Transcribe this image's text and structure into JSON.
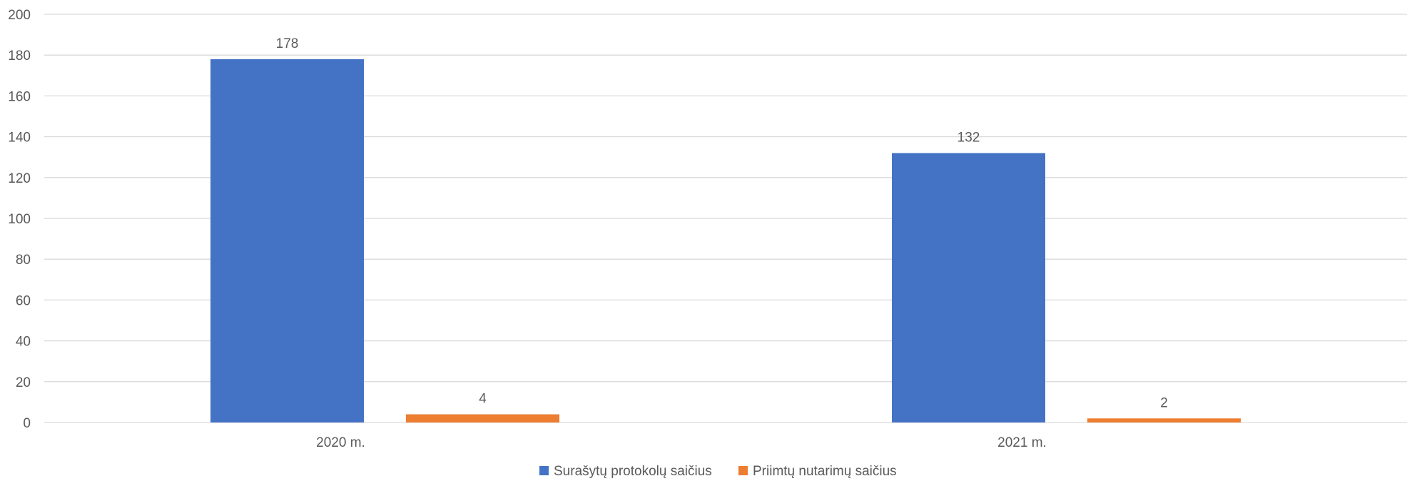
{
  "chart_data": {
    "type": "bar",
    "title": "",
    "xlabel": "",
    "ylabel": "",
    "categories": [
      "2020 m.",
      "2021 m."
    ],
    "series": [
      {
        "name": "Surašytų protokolų saičius",
        "color": "#4472C4",
        "values": [
          178,
          132
        ]
      },
      {
        "name": "Priimtų nutarimų saičius",
        "color": "#ED7D31",
        "values": [
          4,
          2
        ]
      }
    ],
    "ylim": [
      0,
      200
    ],
    "yticks": [
      0,
      20,
      40,
      60,
      80,
      100,
      120,
      140,
      160,
      180,
      200
    ],
    "grid": true,
    "data_labels": true,
    "legend_position": "bottom",
    "colors": {
      "gridline": "#D9D9D9",
      "axis_text": "#595959"
    }
  }
}
